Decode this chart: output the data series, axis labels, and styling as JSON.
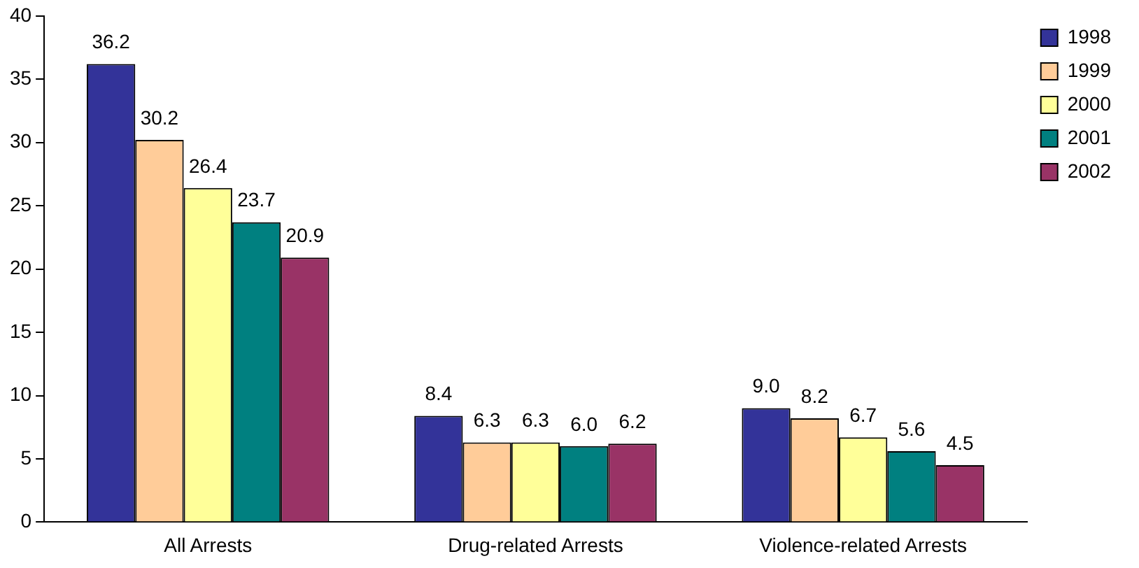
{
  "chart_data": {
    "type": "bar",
    "categories": [
      "All Arrests",
      "Drug-related Arrests",
      "Violence-related Arrests"
    ],
    "series": [
      {
        "name": "1998",
        "color": "#333399",
        "values": [
          36.2,
          8.4,
          9.0
        ],
        "value_labels": [
          "36.2",
          "8.4",
          "9.0"
        ]
      },
      {
        "name": "1999",
        "color": "#ffcc99",
        "values": [
          30.2,
          6.3,
          8.2
        ],
        "value_labels": [
          "30.2",
          "6.3",
          "8.2"
        ]
      },
      {
        "name": "2000",
        "color": "#ffff99",
        "values": [
          26.4,
          6.3,
          6.7
        ],
        "value_labels": [
          "26.4",
          "6.3",
          "6.7"
        ]
      },
      {
        "name": "2001",
        "color": "#008080",
        "values": [
          23.7,
          6.0,
          5.6
        ],
        "value_labels": [
          "23.7",
          "6.0",
          "5.6"
        ]
      },
      {
        "name": "2002",
        "color": "#993366",
        "values": [
          20.9,
          6.2,
          4.5
        ],
        "value_labels": [
          "20.9",
          "6.2",
          "4.5"
        ]
      }
    ],
    "ylim": [
      0,
      40
    ],
    "yticks": [
      0,
      5,
      10,
      15,
      20,
      25,
      30,
      35,
      40
    ],
    "grid": false,
    "legend": "top right"
  }
}
